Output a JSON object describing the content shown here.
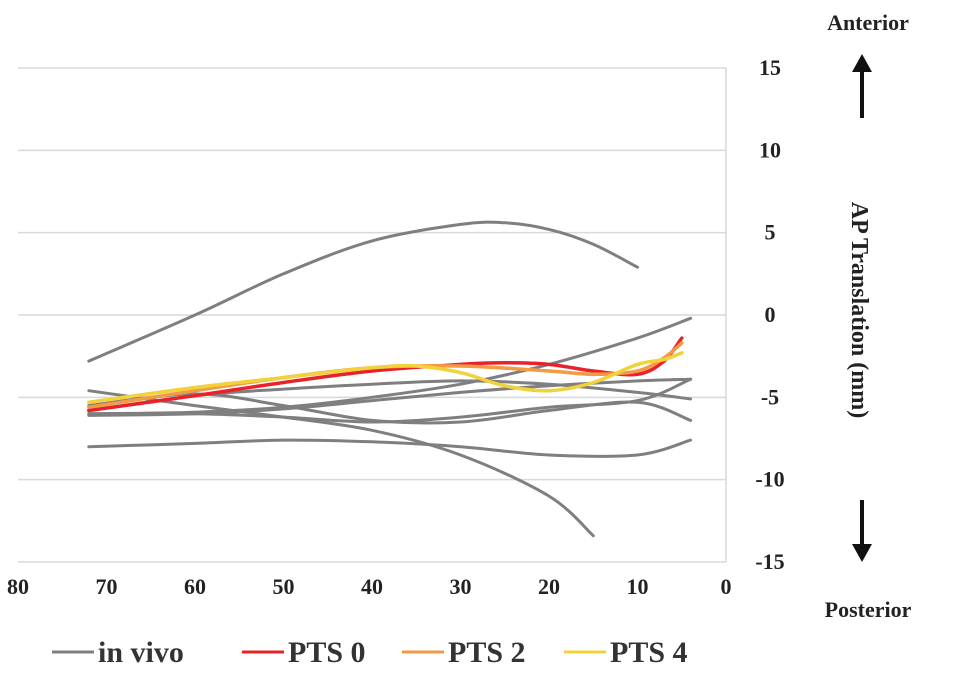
{
  "chart_data": {
    "type": "line",
    "title": "",
    "xlabel": "",
    "ylabel": "AP Translation (mm)",
    "xlim": [
      80,
      0
    ],
    "ylim": [
      -15,
      15
    ],
    "x_ticks": [
      80,
      70,
      60,
      50,
      40,
      30,
      20,
      10,
      0
    ],
    "y_ticks": [
      15,
      10,
      5,
      0,
      -5,
      -10,
      -15
    ],
    "grid": "horizontal",
    "y_axis_side": "right",
    "direction_labels": {
      "top": "Anterior",
      "bottom": "Posterior"
    },
    "legend": {
      "placement": "bottom",
      "entries": [
        {
          "name": "in vivo",
          "color": "#7f7f7f"
        },
        {
          "name": "PTS 0",
          "color": "#e8222a"
        },
        {
          "name": "PTS 2",
          "color": "#f39a45"
        },
        {
          "name": "PTS 4",
          "color": "#f2d23a"
        }
      ]
    },
    "series": [
      {
        "group": "in vivo",
        "color": "#7f7f7f",
        "x": [
          72,
          60,
          50,
          40,
          30,
          25,
          20,
          15,
          10
        ],
        "y": [
          -2.8,
          0,
          2.5,
          4.5,
          5.5,
          5.6,
          5.2,
          4.3,
          2.9
        ]
      },
      {
        "group": "in vivo",
        "color": "#7f7f7f",
        "x": [
          72,
          60,
          50,
          40,
          30,
          20,
          15
        ],
        "y": [
          -4.6,
          -5.5,
          -6.2,
          -7.0,
          -8.5,
          -11.0,
          -13.4
        ]
      },
      {
        "group": "in vivo",
        "color": "#7f7f7f",
        "x": [
          72,
          60,
          50,
          40,
          30,
          20,
          10,
          4
        ],
        "y": [
          -8.0,
          -7.8,
          -7.6,
          -7.7,
          -8.0,
          -8.5,
          -8.5,
          -7.6
        ]
      },
      {
        "group": "in vivo",
        "color": "#7f7f7f",
        "x": [
          72,
          60,
          50,
          40,
          30,
          20,
          10,
          4
        ],
        "y": [
          -6.0,
          -5.9,
          -5.6,
          -5.0,
          -4.2,
          -3.0,
          -1.4,
          -0.2
        ]
      },
      {
        "group": "in vivo",
        "color": "#7f7f7f",
        "x": [
          72,
          60,
          50,
          40,
          30,
          20,
          10,
          4
        ],
        "y": [
          -5.8,
          -4.9,
          -4.5,
          -4.2,
          -4.0,
          -4.2,
          -4.7,
          -5.1
        ]
      },
      {
        "group": "in vivo",
        "color": "#7f7f7f",
        "x": [
          72,
          60,
          50,
          40,
          30,
          20,
          10,
          4
        ],
        "y": [
          -6.1,
          -6.0,
          -5.7,
          -5.2,
          -4.7,
          -4.3,
          -4.0,
          -3.9
        ]
      },
      {
        "group": "in vivo",
        "color": "#7f7f7f",
        "x": [
          72,
          60,
          50,
          40,
          30,
          20,
          10,
          4
        ],
        "y": [
          -6.0,
          -6.0,
          -6.2,
          -6.5,
          -6.2,
          -5.6,
          -5.2,
          -3.9
        ]
      },
      {
        "group": "in vivo",
        "color": "#7f7f7f",
        "x": [
          72,
          60,
          50,
          40,
          30,
          20,
          10,
          4
        ],
        "y": [
          -5.5,
          -4.8,
          -5.5,
          -6.4,
          -6.5,
          -5.8,
          -5.3,
          -6.4
        ]
      },
      {
        "group": "PTS 0",
        "color": "#e8222a",
        "x": [
          72,
          60,
          50,
          40,
          30,
          25,
          20,
          15,
          10,
          7,
          5
        ],
        "y": [
          -5.8,
          -4.9,
          -4.1,
          -3.4,
          -3.0,
          -2.9,
          -3.0,
          -3.4,
          -3.6,
          -2.8,
          -1.4
        ]
      },
      {
        "group": "PTS 2",
        "color": "#f39a45",
        "x": [
          72,
          60,
          50,
          40,
          30,
          20,
          15,
          10,
          7,
          5
        ],
        "y": [
          -5.6,
          -4.6,
          -3.8,
          -3.2,
          -3.1,
          -3.4,
          -3.6,
          -3.4,
          -2.6,
          -1.7
        ]
      },
      {
        "group": "PTS 4",
        "color": "#f2d23a",
        "x": [
          72,
          60,
          50,
          40,
          35,
          30,
          25,
          20,
          15,
          10,
          7,
          5
        ],
        "y": [
          -5.3,
          -4.4,
          -3.8,
          -3.2,
          -3.1,
          -3.5,
          -4.3,
          -4.6,
          -4.1,
          -3.0,
          -2.7,
          -2.3
        ]
      }
    ]
  }
}
